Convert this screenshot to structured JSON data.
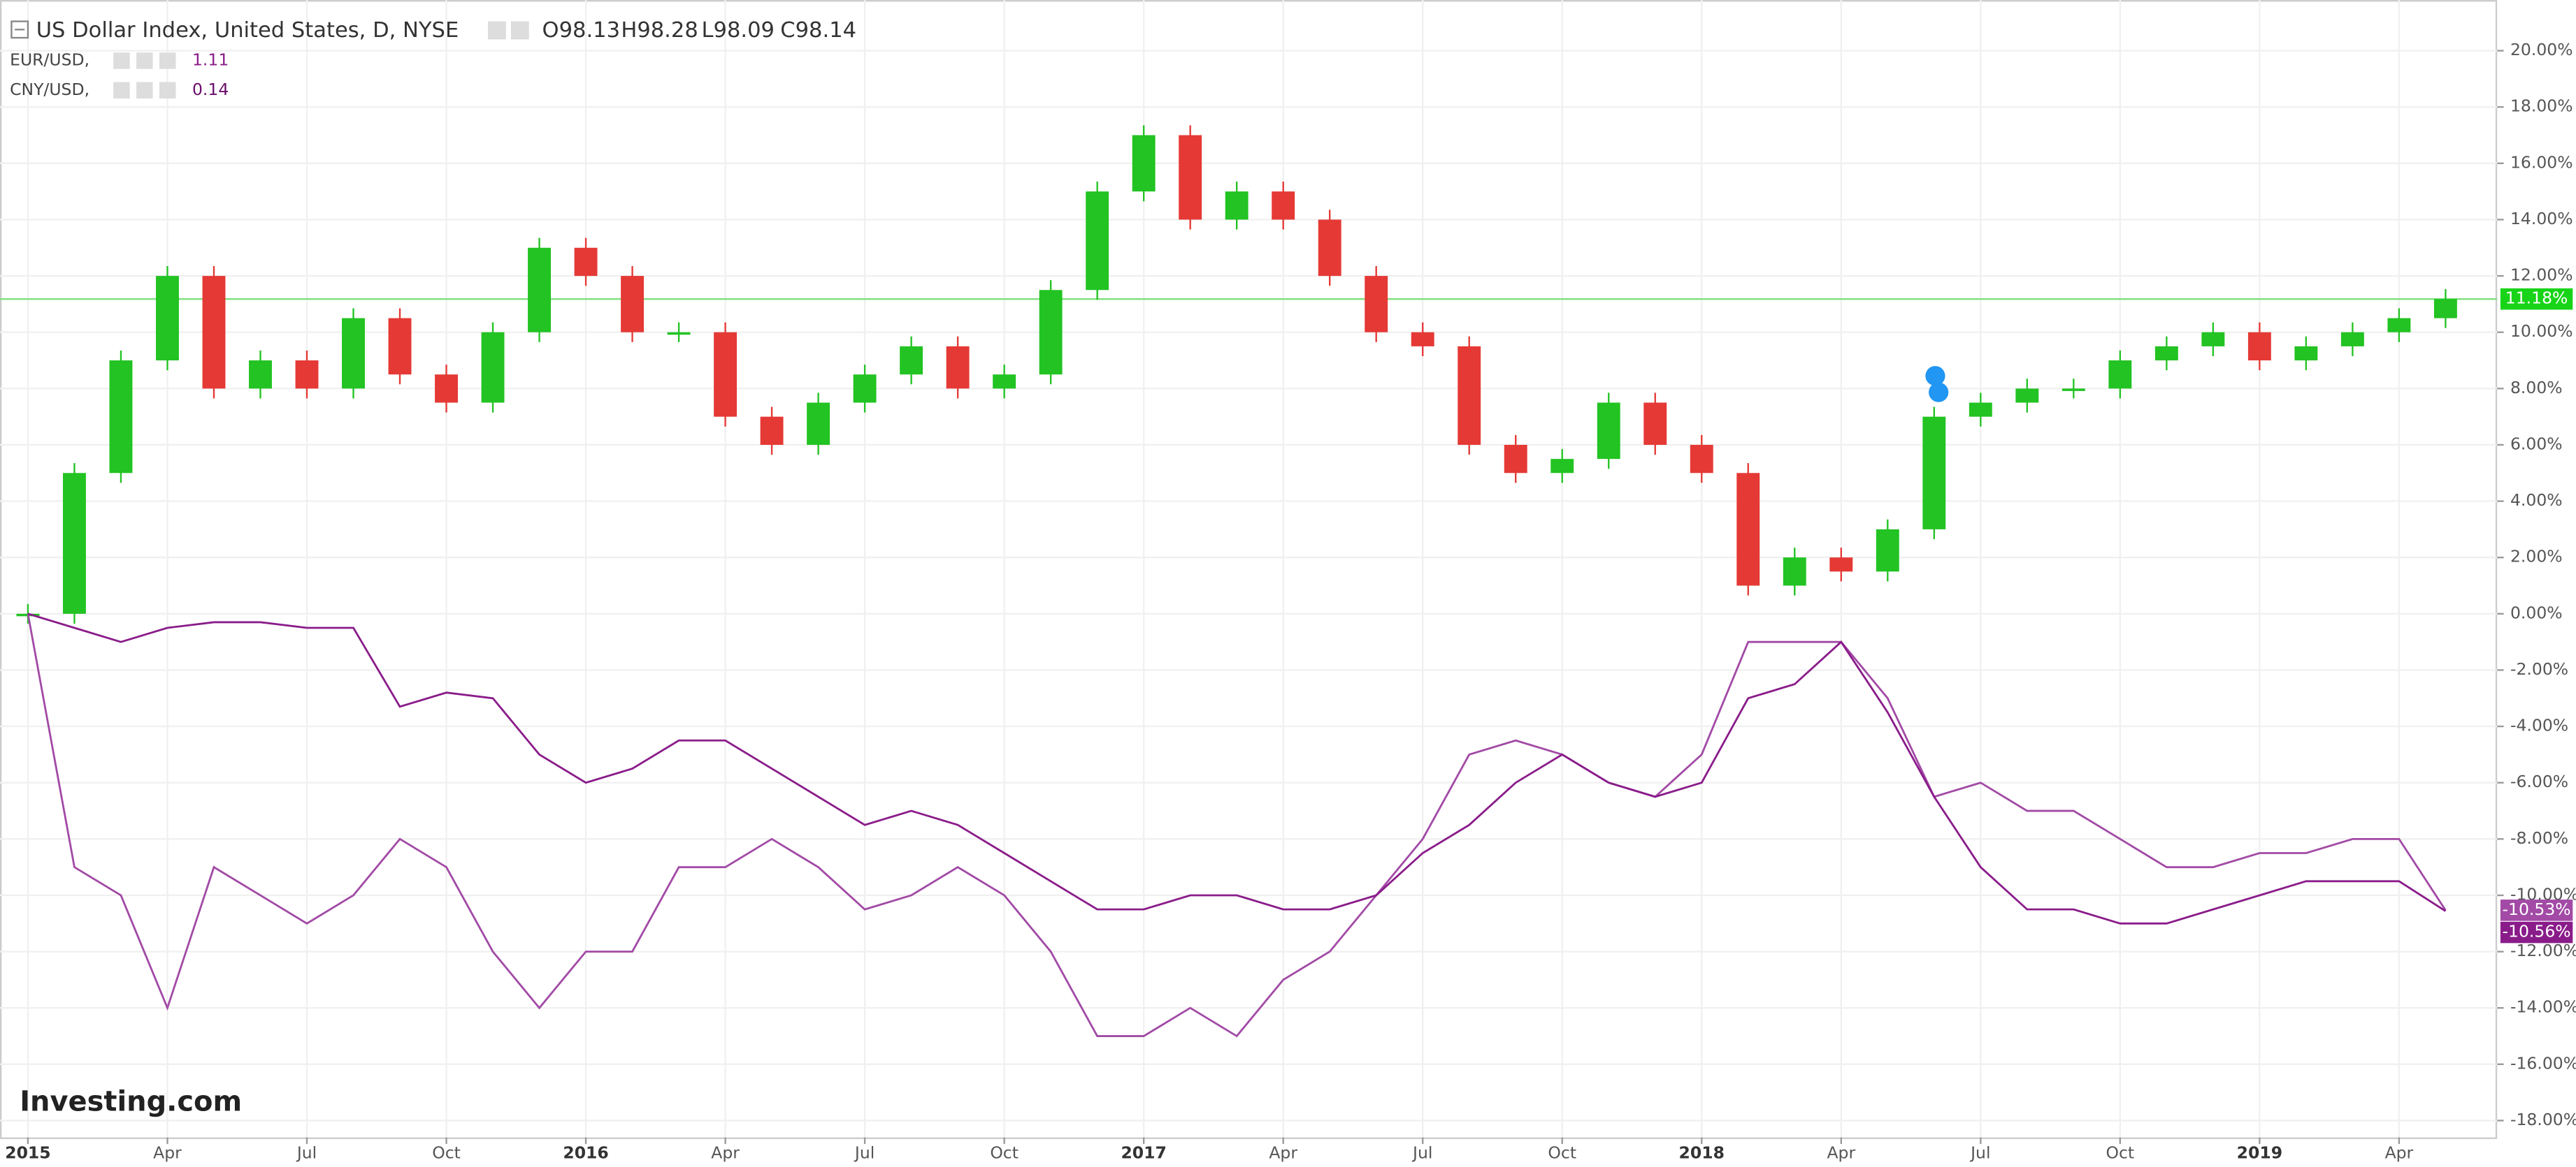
{
  "chart_data": {
    "type": "candlestick",
    "title": "US Dollar Index, United States, D, NYSE",
    "ohlc": [
      "O98.13",
      "H98.28",
      "L98.09",
      "C98.14"
    ],
    "watermark": "Investing.com",
    "categories": [
      "2015",
      null,
      null,
      "Apr",
      null,
      null,
      "Jul",
      null,
      null,
      "Oct",
      null,
      null,
      "2016",
      null,
      null,
      "Apr",
      null,
      null,
      "Jul",
      null,
      null,
      "Oct",
      null,
      null,
      "2017",
      null,
      null,
      "Apr",
      null,
      null,
      "Jul",
      null,
      null,
      "Oct",
      null,
      null,
      "2018",
      null,
      null,
      "Apr",
      null,
      null,
      "Jul",
      null,
      null,
      "Oct",
      null,
      null,
      "2019",
      null,
      null,
      "Apr",
      null
    ],
    "ylim": [
      -18.6,
      21.8
    ],
    "yticks": [
      {
        "value": -18,
        "label": "-18.00%"
      },
      {
        "value": -16,
        "label": "-16.00%"
      },
      {
        "value": -14,
        "label": "-14.00%"
      },
      {
        "value": -12,
        "label": "-12.00%"
      },
      {
        "value": -10,
        "label": "-10.00%"
      },
      {
        "value": -8,
        "label": "-8.00%"
      },
      {
        "value": -6,
        "label": "-6.00%"
      },
      {
        "value": -4,
        "label": "-4.00%"
      },
      {
        "value": -2,
        "label": "-2.00%"
      },
      {
        "value": 0,
        "label": "0.00%"
      },
      {
        "value": 2,
        "label": "2.00%"
      },
      {
        "value": 4,
        "label": "4.00%"
      },
      {
        "value": 6,
        "label": "6.00%"
      },
      {
        "value": 8,
        "label": "8.00%"
      },
      {
        "value": 10,
        "label": "10.00%"
      },
      {
        "value": 12,
        "label": "12.00%"
      },
      {
        "value": 14,
        "label": "14.00%"
      },
      {
        "value": 16,
        "label": "16.00%"
      },
      {
        "value": 18,
        "label": "18.00%"
      },
      {
        "value": 20,
        "label": "20.00%"
      }
    ],
    "grid": true,
    "up_color": "#22c322",
    "down_color": "#e53935",
    "series": [
      {
        "name": "US Dollar Index",
        "color": "#7ee07e",
        "badge": "11.18%",
        "values": [
          0,
          5,
          9,
          12,
          8,
          9,
          8,
          10.5,
          8.5,
          7.5,
          10,
          13,
          12,
          10,
          10,
          7,
          6,
          7.5,
          8.5,
          9.5,
          8,
          8.5,
          11.5,
          15,
          17,
          14,
          15,
          14,
          12,
          10,
          9.5,
          6,
          5,
          5.5,
          7.5,
          6,
          5,
          1,
          2,
          1.5,
          3,
          7,
          7.5,
          8,
          8,
          9,
          9.5,
          10,
          9,
          9.5,
          10,
          10.5,
          11.18
        ]
      },
      {
        "name": "EUR/USD,",
        "last": "1.11",
        "color": "#a24aa6",
        "badge": "-10.53%",
        "values": [
          0,
          -9,
          -10,
          -14,
          -9,
          -10,
          -11,
          -10,
          -8,
          -9,
          -12,
          -14,
          -12,
          -12,
          -9,
          -9,
          -8,
          -9,
          -10.5,
          -10,
          -9,
          -10,
          -12,
          -15,
          -15,
          -14,
          -15,
          -13,
          -12,
          -10,
          -8,
          -5,
          -4.5,
          -5,
          -6,
          -6.5,
          -5,
          -1,
          -1,
          -1,
          -3,
          -6.5,
          -6,
          -7,
          -7,
          -8,
          -9,
          -9,
          -8.5,
          -8.5,
          -8,
          -8,
          -10.53
        ]
      },
      {
        "name": "CNY/USD,",
        "last": "0.14",
        "color": "#8a1c8a",
        "badge": "-10.56%",
        "values": [
          0,
          -0.5,
          -1,
          -0.5,
          -0.3,
          -0.3,
          -0.5,
          -0.5,
          -3.3,
          -2.8,
          -3,
          -5,
          -6,
          -5.5,
          -4.5,
          -4.5,
          -5.5,
          -6.5,
          -7.5,
          -7,
          -7.5,
          -8.5,
          -9.5,
          -10.5,
          -10.5,
          -10,
          -10,
          -10.5,
          -10.5,
          -10,
          -8.5,
          -7.5,
          -6,
          -5,
          -6,
          -6.5,
          -6,
          -3,
          -2.5,
          -1,
          -3.5,
          -6.5,
          -9,
          -10.5,
          -10.5,
          -11,
          -11,
          -10.5,
          -10,
          -9.5,
          -9.5,
          -9.5,
          -10.56
        ]
      }
    ]
  }
}
